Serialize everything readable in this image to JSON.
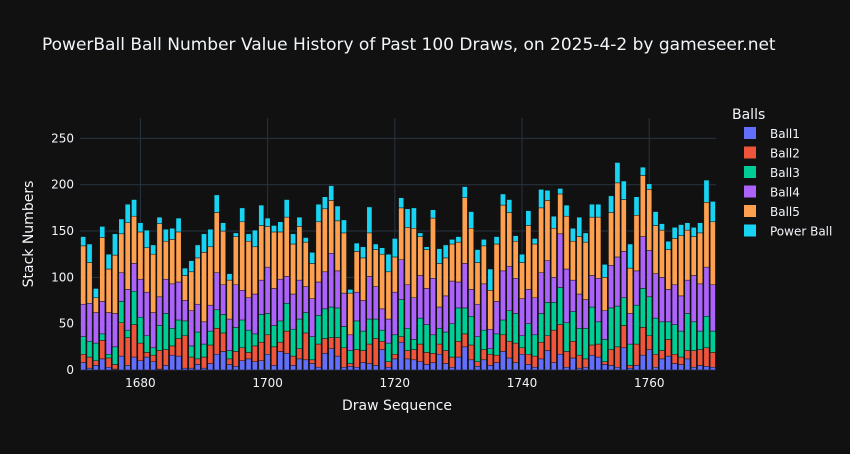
{
  "chart_data": {
    "type": "bar",
    "stacked": true,
    "title": "PowerBall Ball Number Value History of Past 100 Draws, on 2025-4-2 by gameseer.net",
    "xlabel": "Draw Sequence",
    "ylabel": "Stack Numbers",
    "x_start": 1671,
    "x_end": 1770,
    "xlim": [
      1670.5,
      1770.5
    ],
    "ylim": [
      0,
      272
    ],
    "x_ticks": [
      1680,
      1700,
      1720,
      1740,
      1760
    ],
    "y_ticks": [
      0,
      50,
      100,
      150,
      200,
      250
    ],
    "grid": true,
    "legend_title": "Balls",
    "legend_position": "right",
    "series": [
      {
        "name": "Ball1",
        "color": "#636efa",
        "values": [
          8,
          2,
          5,
          12,
          3,
          1,
          15,
          5,
          14,
          10,
          14,
          9,
          1,
          5,
          16,
          15,
          2,
          2,
          6,
          2,
          7,
          17,
          20,
          6,
          4,
          10,
          12,
          9,
          10,
          17,
          5,
          20,
          18,
          5,
          12,
          11,
          7,
          3,
          18,
          23,
          15,
          3,
          4,
          3,
          8,
          7,
          5,
          22,
          3,
          12,
          30,
          12,
          11,
          9,
          6,
          8,
          17,
          7,
          3,
          14,
          25,
          11,
          4,
          11,
          5,
          8,
          20,
          13,
          8,
          17,
          6,
          3,
          12,
          21,
          8,
          17,
          3,
          13,
          2,
          3,
          16,
          14,
          6,
          5,
          3,
          24,
          2,
          5,
          16,
          22,
          3,
          12,
          15,
          7,
          6,
          12,
          3,
          5,
          4,
          3
        ]
      },
      {
        "name": "Ball2",
        "color": "#ef553b",
        "values": [
          9,
          12,
          5,
          20,
          10,
          5,
          36,
          30,
          35,
          19,
          5,
          7,
          20,
          17,
          10,
          19,
          35,
          12,
          6,
          12,
          20,
          28,
          20,
          6,
          16,
          14,
          7,
          17,
          20,
          21,
          20,
          10,
          24,
          10,
          11,
          29,
          4,
          25,
          16,
          12,
          20,
          21,
          3,
          19,
          13,
          21,
          29,
          9,
          6,
          5,
          6,
          9,
          11,
          19,
          13,
          10,
          11,
          14,
          11,
          17,
          14,
          16,
          5,
          11,
          12,
          8,
          18,
          18,
          21,
          7,
          11,
          12,
          18,
          16,
          35,
          32,
          17,
          18,
          14,
          9,
          11,
          14,
          3,
          17,
          22,
          24,
          3,
          23,
          30,
          15,
          14,
          9,
          18,
          10,
          8,
          9,
          18,
          17,
          20,
          16
        ]
      },
      {
        "name": "Ball3",
        "color": "#00cc96",
        "values": [
          19,
          17,
          19,
          7,
          4,
          19,
          23,
          8,
          36,
          28,
          18,
          8,
          27,
          39,
          19,
          20,
          16,
          12,
          29,
          14,
          15,
          20,
          20,
          9,
          26,
          30,
          24,
          13,
          30,
          23,
          23,
          23,
          30,
          29,
          32,
          22,
          25,
          31,
          32,
          33,
          32,
          23,
          14,
          31,
          21,
          27,
          21,
          12,
          20,
          21,
          40,
          24,
          11,
          28,
          30,
          20,
          17,
          20,
          36,
          36,
          28,
          31,
          27,
          21,
          6,
          23,
          16,
          33,
          32,
          13,
          33,
          23,
          31,
          36,
          30,
          40,
          31,
          32,
          29,
          33,
          41,
          24,
          24,
          45,
          44,
          30,
          23,
          42,
          42,
          42,
          39,
          31,
          19,
          32,
          28,
          40,
          31,
          20,
          34,
          23
        ]
      },
      {
        "name": "Ball4",
        "color": "#ab63fa",
        "values": [
          35,
          41,
          33,
          35,
          45,
          36,
          31,
          44,
          30,
          41,
          47,
          38,
          31,
          37,
          48,
          41,
          22,
          38,
          30,
          24,
          28,
          40,
          32,
          34,
          46,
          32,
          35,
          43,
          37,
          50,
          40,
          45,
          29,
          38,
          42,
          28,
          41,
          36,
          40,
          58,
          40,
          36,
          17,
          31,
          33,
          46,
          35,
          23,
          26,
          46,
          43,
          47,
          45,
          46,
          39,
          61,
          23,
          39,
          46,
          28,
          48,
          29,
          35,
          50,
          21,
          35,
          53,
          48,
          38,
          40,
          37,
          40,
          44,
          45,
          27,
          58,
          58,
          34,
          37,
          31,
          34,
          47,
          31,
          46,
          53,
          50,
          33,
          37,
          56,
          50,
          48,
          48,
          35,
          43,
          38,
          36,
          50,
          51,
          53,
          50
        ]
      },
      {
        "name": "Ball5",
        "color": "#fea04f",
        "values": [
          63,
          44,
          16,
          69,
          47,
          63,
          42,
          72,
          51,
          51,
          48,
          63,
          79,
          41,
          48,
          54,
          27,
          42,
          50,
          75,
          63,
          65,
          58,
          42,
          52,
          74,
          61,
          51,
          59,
          44,
          61,
          51,
          64,
          54,
          58,
          48,
          38,
          65,
          68,
          57,
          54,
          65,
          45,
          44,
          46,
          47,
          40,
          59,
          51,
          38,
          56,
          62,
          75,
          42,
          42,
          65,
          47,
          41,
          40,
          43,
          71,
          66,
          45,
          41,
          42,
          62,
          71,
          58,
          40,
          39,
          69,
          58,
          70,
          65,
          53,
          43,
          57,
          42,
          62,
          62,
          63,
          66,
          36,
          57,
          80,
          56,
          49,
          60,
          66,
          66,
          52,
          51,
          43,
          50,
          65,
          54,
          42,
          55,
          70,
          68
        ]
      },
      {
        "name": "Power Ball",
        "color": "#19d3f3",
        "values": [
          10,
          20,
          10,
          12,
          16,
          23,
          16,
          20,
          18,
          10,
          19,
          10,
          7,
          13,
          12,
          15,
          8,
          12,
          14,
          20,
          19,
          19,
          9,
          7,
          4,
          15,
          8,
          18,
          22,
          9,
          7,
          11,
          19,
          11,
          10,
          5,
          12,
          19,
          13,
          16,
          16,
          14,
          4,
          9,
          12,
          28,
          6,
          7,
          19,
          20,
          11,
          20,
          22,
          4,
          3,
          9,
          16,
          14,
          5,
          6,
          12,
          18,
          14,
          7,
          23,
          8,
          12,
          14,
          6,
          9,
          16,
          6,
          20,
          11,
          13,
          6,
          12,
          14,
          21,
          10,
          14,
          14,
          14,
          18,
          22,
          20,
          26,
          20,
          9,
          6,
          15,
          7,
          9,
          12,
          12,
          8,
          10,
          11,
          24,
          22
        ]
      }
    ]
  }
}
